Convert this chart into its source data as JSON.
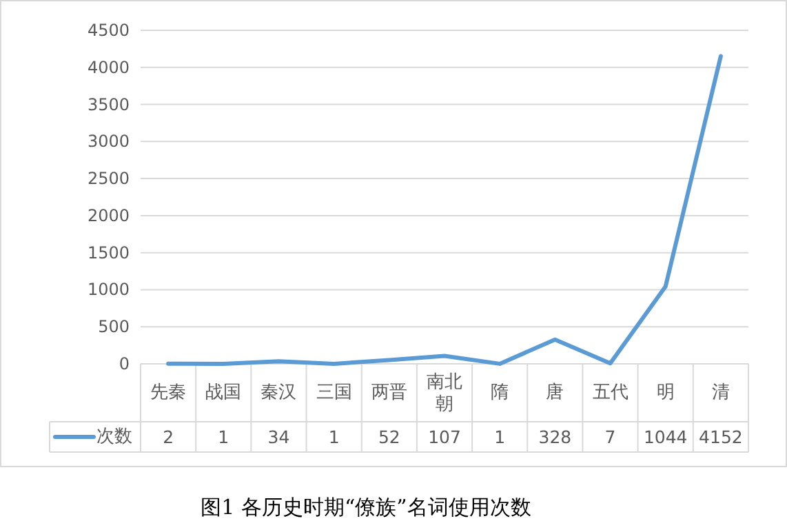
{
  "chart_data": {
    "type": "line",
    "title": "图1 各历史时期“僚族”名词使用次数",
    "categories": [
      "先秦",
      "战国",
      "秦汉",
      "三国",
      "两晋",
      "南北朝",
      "隋",
      "唐",
      "五代",
      "明",
      "清"
    ],
    "series": [
      {
        "name": "次数",
        "color": "#5b9bd5",
        "values": [
          2,
          1,
          34,
          1,
          52,
          107,
          1,
          328,
          7,
          1044,
          4152
        ]
      }
    ],
    "ylim": [
      0,
      4500
    ],
    "yticks": [
      0,
      500,
      1000,
      1500,
      2000,
      2500,
      3000,
      3500,
      4000,
      4500
    ],
    "grid": "y",
    "data_labels": true,
    "legend": "bottom",
    "marker": "none",
    "line_style": "solid"
  }
}
